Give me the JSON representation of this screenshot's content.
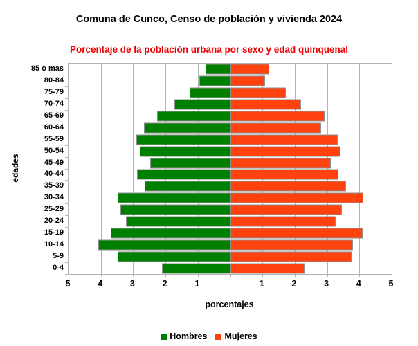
{
  "title": "Comuna de Cunco, Censo de población y vivienda 2024",
  "subtitle": "Porcentaje de la población urbana por sexo y edad quinquenal",
  "colors": {
    "subtitle": "#ee0000",
    "hombres": "#008000",
    "mujeres": "#ff420e",
    "bar_border": "#8f8f8f",
    "grid": "#b3b3b3"
  },
  "chart_data": {
    "type": "bar",
    "variant": "population-pyramid",
    "title": "Comuna de Cunco, Censo de población y vivienda 2024",
    "subtitle": "Porcentaje de la población urbana por sexo y edad quinquenal",
    "xlabel": "porcentajes",
    "ylabel": "edades",
    "categories_top_to_bottom": [
      "85 o mas",
      "80-84",
      "75-79",
      "70-74",
      "65-69",
      "60-64",
      "55-59",
      "50-54",
      "45-49",
      "40-44",
      "35-39",
      "30-34",
      "25-29",
      "20-24",
      "15-19",
      "10-14",
      "5-9",
      "0-4"
    ],
    "series": [
      {
        "name": "Hombres",
        "side": "left",
        "color": "#008000",
        "values": [
          0.75,
          0.95,
          1.25,
          1.72,
          2.25,
          2.66,
          2.9,
          2.79,
          2.47,
          2.88,
          2.64,
          3.48,
          3.39,
          3.23,
          3.69,
          4.07,
          3.47,
          2.11
        ]
      },
      {
        "name": "Mujeres",
        "side": "right",
        "color": "#ff420e",
        "values": [
          1.2,
          1.08,
          1.73,
          2.2,
          2.93,
          2.82,
          3.32,
          3.42,
          3.11,
          3.35,
          3.59,
          4.12,
          3.46,
          3.27,
          4.1,
          3.8,
          3.75,
          2.3
        ]
      }
    ],
    "x_ticks_left": [
      "5",
      "4",
      "3",
      "2",
      "1"
    ],
    "x_ticks_right": [
      "1",
      "2",
      "3",
      "4",
      "5"
    ],
    "x_max_each_side": 5,
    "grid": true,
    "legend_position": "bottom-center"
  }
}
